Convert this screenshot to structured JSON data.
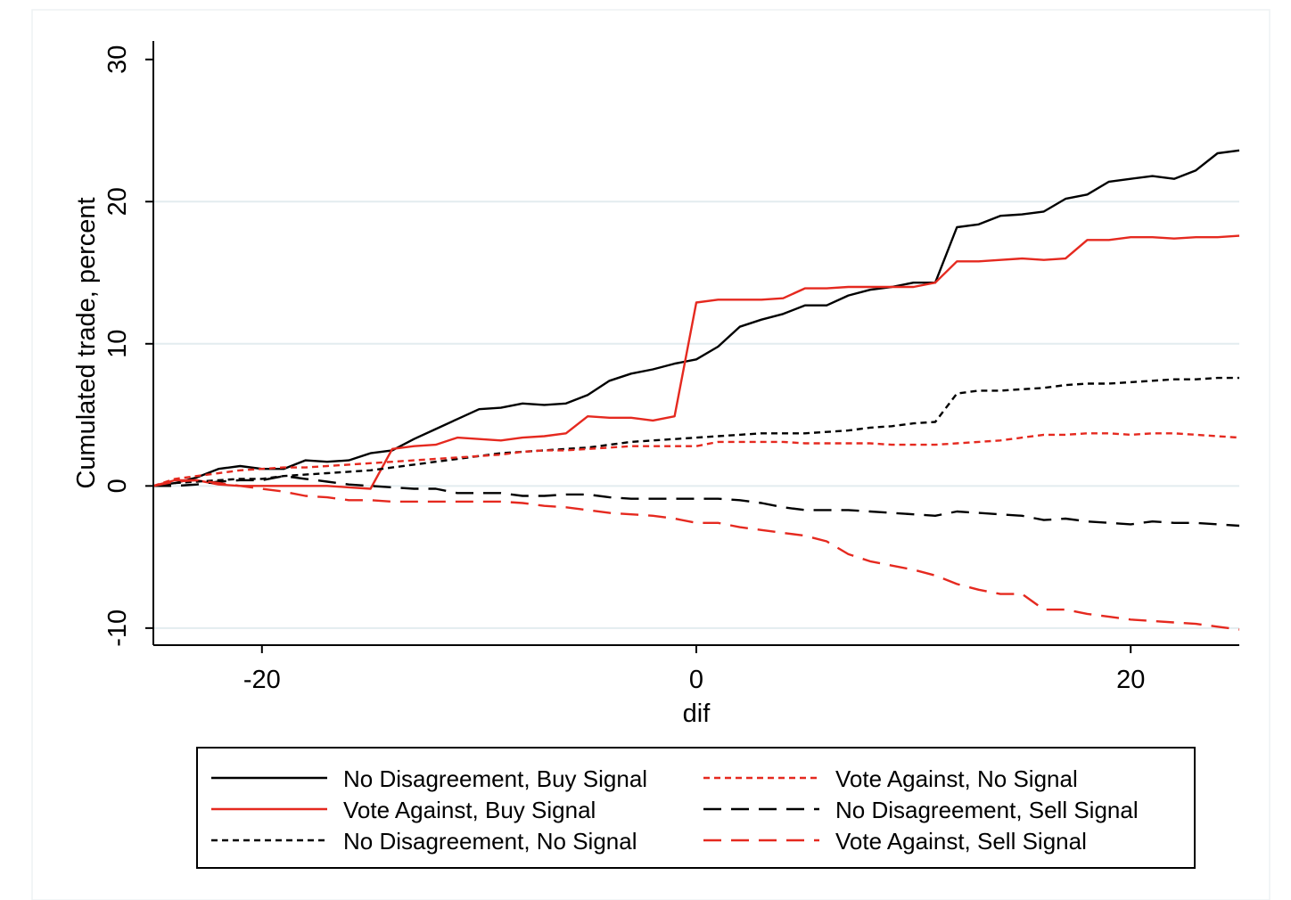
{
  "chart_data": {
    "type": "line",
    "xlabel": "dif",
    "ylabel": "Cumulated trade, percent",
    "xlim": [
      -25,
      25
    ],
    "ylim": [
      -11.2,
      31.3
    ],
    "xticks": [
      -20,
      0,
      20
    ],
    "xtick_labels": [
      "-20",
      "0",
      "20"
    ],
    "yticks": [
      -10,
      0,
      10,
      20,
      30
    ],
    "ytick_labels": [
      "-10",
      "0",
      "10",
      "20",
      "30"
    ],
    "grid": "horizontal",
    "legend_position": "bottom",
    "x": [
      -25,
      -24,
      -23,
      -22,
      -21,
      -20,
      -19,
      -18,
      -17,
      -16,
      -15,
      -14,
      -13,
      -12,
      -11,
      -10,
      -9,
      -8,
      -7,
      -6,
      -5,
      -4,
      -3,
      -2,
      -1,
      0,
      1,
      2,
      3,
      4,
      5,
      6,
      7,
      8,
      9,
      10,
      11,
      12,
      13,
      14,
      15,
      16,
      17,
      18,
      19,
      20,
      21,
      22,
      23,
      24,
      25
    ],
    "series": [
      {
        "name": "No Disagreement, Buy Signal",
        "color": "#000000",
        "dash": "solid",
        "values": [
          0,
          0.2,
          0.6,
          1.2,
          1.4,
          1.2,
          1.2,
          1.8,
          1.7,
          1.8,
          2.3,
          2.5,
          3.3,
          4.0,
          4.7,
          5.4,
          5.5,
          5.8,
          5.7,
          5.8,
          6.4,
          7.4,
          7.9,
          8.2,
          8.6,
          8.9,
          9.8,
          11.2,
          11.7,
          12.1,
          12.7,
          12.7,
          13.4,
          13.8,
          14.0,
          14.3,
          14.3,
          18.2,
          18.4,
          19.0,
          19.1,
          19.3,
          20.2,
          20.5,
          21.4,
          21.6,
          21.8,
          21.6,
          22.2,
          23.4,
          23.6
        ]
      },
      {
        "name": "Vote Against, Buy Signal",
        "color": "#e5291f",
        "dash": "solid",
        "values": [
          0,
          0.4,
          0.4,
          0.1,
          0,
          0,
          0,
          0,
          0,
          -0.1,
          -0.2,
          2.6,
          2.8,
          2.9,
          3.4,
          3.3,
          3.2,
          3.4,
          3.5,
          3.7,
          4.9,
          4.8,
          4.8,
          4.6,
          4.9,
          12.9,
          13.1,
          13.1,
          13.1,
          13.2,
          13.9,
          13.9,
          14.0,
          14.0,
          14.0,
          14.0,
          14.3,
          15.8,
          15.8,
          15.9,
          16.0,
          15.9,
          16.0,
          17.3,
          17.3,
          17.5,
          17.5,
          17.4,
          17.5,
          17.5,
          17.6
        ]
      },
      {
        "name": "No Disagreement, No Signal",
        "color": "#000000",
        "dash": "dot",
        "values": [
          0,
          0.2,
          0.3,
          0.4,
          0.5,
          0.5,
          0.7,
          0.8,
          0.9,
          1.0,
          1.1,
          1.3,
          1.5,
          1.7,
          1.9,
          2.1,
          2.3,
          2.4,
          2.5,
          2.6,
          2.7,
          2.9,
          3.1,
          3.2,
          3.3,
          3.4,
          3.5,
          3.6,
          3.7,
          3.7,
          3.7,
          3.8,
          3.9,
          4.1,
          4.2,
          4.4,
          4.5,
          6.5,
          6.7,
          6.7,
          6.8,
          6.9,
          7.1,
          7.2,
          7.2,
          7.3,
          7.4,
          7.5,
          7.5,
          7.6,
          7.6
        ]
      },
      {
        "name": "Vote Against, No Signal",
        "color": "#e5291f",
        "dash": "dot",
        "values": [
          0,
          0.5,
          0.7,
          0.9,
          1.1,
          1.2,
          1.3,
          1.3,
          1.4,
          1.5,
          1.6,
          1.7,
          1.8,
          1.9,
          2.0,
          2.1,
          2.2,
          2.4,
          2.5,
          2.5,
          2.6,
          2.7,
          2.8,
          2.8,
          2.8,
          2.8,
          3.1,
          3.1,
          3.1,
          3.1,
          3.0,
          3.0,
          3.0,
          3.0,
          2.9,
          2.9,
          2.9,
          3.0,
          3.1,
          3.2,
          3.4,
          3.6,
          3.6,
          3.7,
          3.7,
          3.6,
          3.7,
          3.7,
          3.6,
          3.5,
          3.4
        ]
      },
      {
        "name": "No Disagreement, Sell Signal",
        "color": "#000000",
        "dash": "longdash",
        "values": [
          0,
          0,
          0.1,
          0.3,
          0.4,
          0.4,
          0.7,
          0.5,
          0.3,
          0.1,
          0,
          -0.1,
          -0.2,
          -0.2,
          -0.5,
          -0.5,
          -0.5,
          -0.7,
          -0.7,
          -0.6,
          -0.6,
          -0.8,
          -0.9,
          -0.9,
          -0.9,
          -0.9,
          -0.9,
          -1.0,
          -1.2,
          -1.5,
          -1.7,
          -1.7,
          -1.7,
          -1.8,
          -1.9,
          -2.0,
          -2.1,
          -1.8,
          -1.9,
          -2.0,
          -2.1,
          -2.4,
          -2.3,
          -2.5,
          -2.6,
          -2.7,
          -2.5,
          -2.6,
          -2.6,
          -2.7,
          -2.8
        ]
      },
      {
        "name": "Vote Against, Sell Signal",
        "color": "#e5291f",
        "dash": "longdash",
        "values": [
          0,
          0.3,
          0.4,
          0.2,
          0,
          -0.2,
          -0.4,
          -0.7,
          -0.8,
          -1.0,
          -1.0,
          -1.1,
          -1.1,
          -1.1,
          -1.1,
          -1.1,
          -1.1,
          -1.2,
          -1.4,
          -1.5,
          -1.7,
          -1.9,
          -2.0,
          -2.1,
          -2.3,
          -2.6,
          -2.6,
          -2.9,
          -3.1,
          -3.3,
          -3.5,
          -3.9,
          -4.8,
          -5.3,
          -5.6,
          -5.9,
          -6.3,
          -6.9,
          -7.3,
          -7.6,
          -7.6,
          -8.7,
          -8.7,
          -9.0,
          -9.2,
          -9.4,
          -9.5,
          -9.6,
          -9.7,
          -9.9,
          -10.1
        ]
      }
    ]
  }
}
